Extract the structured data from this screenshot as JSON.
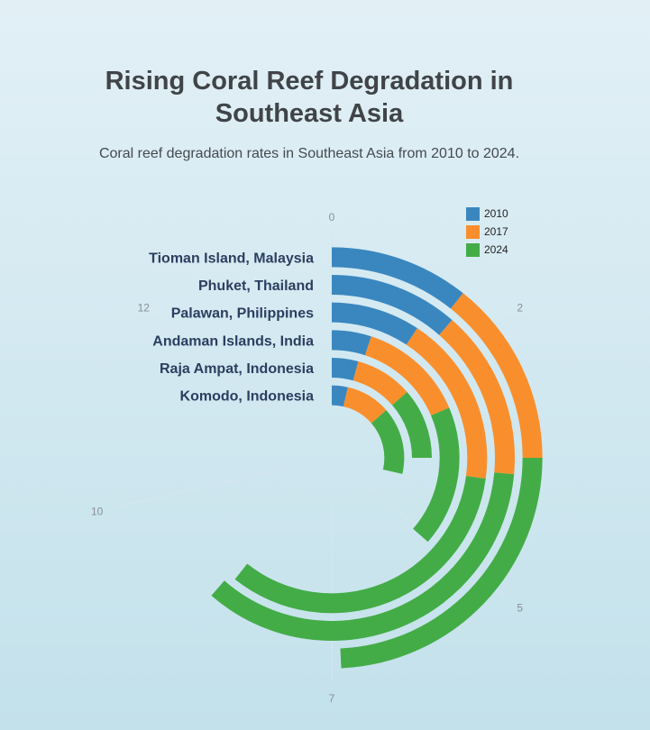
{
  "title_line1": "Rising Coral Reef Degradation in",
  "title_line2": "Southeast Asia",
  "subtitle": "Coral reef degradation rates in Southeast Asia from 2010 to 2024.",
  "chart_data": {
    "type": "bar",
    "subtype": "radial-stacked-bar",
    "title": "Rising Coral Reef Degradation in Southeast Asia",
    "subtitle": "Coral reef degradation rates in Southeast Asia from 2010 to 2024.",
    "categories": [
      "Tioman Island, Malaysia",
      "Phuket, Thailand",
      "Palawan, Philippines",
      "Andaman Islands, India",
      "Raja Ampat, Indonesia",
      "Komodo, Indonesia"
    ],
    "series": [
      {
        "name": "2010",
        "color": "#3a87c0",
        "values": [
          1.5,
          1.6,
          1.3,
          0.7,
          0.6,
          0.5
        ]
      },
      {
        "name": "2017",
        "color": "#f98f2c",
        "values": [
          2.0,
          2.1,
          2.5,
          1.9,
          1.3,
          1.4
        ]
      },
      {
        "name": "2024",
        "color": "#43ac47",
        "values": [
          3.4,
          4.9,
          4.7,
          2.5,
          1.6,
          2.1
        ]
      }
    ],
    "radial_axis": {
      "min": 0,
      "max": 14,
      "ticks": [
        0,
        2,
        5,
        7,
        10,
        12
      ]
    },
    "legend": {
      "position": "top-right"
    },
    "grid": true
  }
}
